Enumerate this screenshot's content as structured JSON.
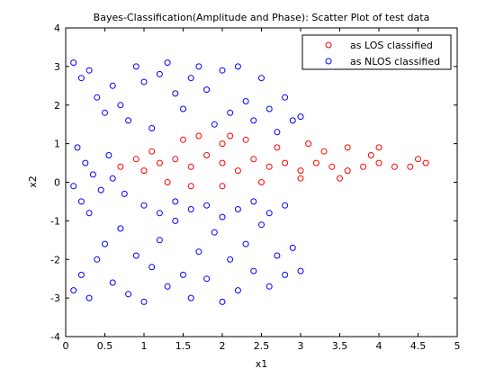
{
  "chart_data": {
    "type": "scatter",
    "title": "Bayes-Classification(Amplitude and Phase): Scatter Plot of test data",
    "xlabel": "x1",
    "ylabel": "x2",
    "xlim": [
      0,
      5
    ],
    "ylim": [
      -4,
      4
    ],
    "xticks": [
      "0",
      "0.5",
      "1",
      "1.5",
      "2",
      "2.5",
      "3",
      "3.5",
      "4",
      "4.5",
      "5"
    ],
    "yticks": [
      "-4",
      "-3",
      "-2",
      "-1",
      "0",
      "1",
      "2",
      "3",
      "4"
    ],
    "grid": false,
    "legend_position": "top-right",
    "marker": "open-circle",
    "series": [
      {
        "name": "as LOS classified",
        "color": "#ff0000",
        "points": [
          [
            1.2,
            0.5
          ],
          [
            1.4,
            0.6
          ],
          [
            1.6,
            0.4
          ],
          [
            1.8,
            0.7
          ],
          [
            2.0,
            0.5
          ],
          [
            2.2,
            0.3
          ],
          [
            2.4,
            0.6
          ],
          [
            2.6,
            0.4
          ],
          [
            2.8,
            0.5
          ],
          [
            3.0,
            0.3
          ],
          [
            3.2,
            0.5
          ],
          [
            3.4,
            0.4
          ],
          [
            3.6,
            0.3
          ],
          [
            3.8,
            0.4
          ],
          [
            4.0,
            0.5
          ],
          [
            4.2,
            0.4
          ],
          [
            4.4,
            0.4
          ],
          [
            4.5,
            0.6
          ],
          [
            4.6,
            0.5
          ],
          [
            4.0,
            0.9
          ],
          [
            1.5,
            1.1
          ],
          [
            1.7,
            1.2
          ],
          [
            2.0,
            1.0
          ],
          [
            2.3,
            1.1
          ],
          [
            2.7,
            0.9
          ],
          [
            3.3,
            0.8
          ],
          [
            3.9,
            0.7
          ],
          [
            1.3,
            0.0
          ],
          [
            1.6,
            -0.1
          ],
          [
            2.0,
            -0.1
          ],
          [
            2.5,
            0.0
          ],
          [
            3.0,
            0.1
          ],
          [
            3.5,
            0.1
          ],
          [
            0.7,
            0.4
          ],
          [
            0.9,
            0.6
          ],
          [
            1.0,
            0.3
          ],
          [
            1.1,
            0.8
          ],
          [
            3.6,
            0.9
          ],
          [
            3.1,
            1.0
          ],
          [
            2.1,
            1.2
          ]
        ]
      },
      {
        "name": "as NLOS classified",
        "color": "#0000ff",
        "points": [
          [
            0.1,
            3.1
          ],
          [
            0.2,
            2.7
          ],
          [
            0.3,
            2.9
          ],
          [
            0.4,
            2.2
          ],
          [
            0.5,
            1.8
          ],
          [
            0.6,
            2.5
          ],
          [
            0.7,
            2.0
          ],
          [
            0.8,
            1.6
          ],
          [
            0.9,
            3.0
          ],
          [
            1.0,
            2.6
          ],
          [
            1.1,
            1.4
          ],
          [
            1.2,
            2.8
          ],
          [
            1.3,
            3.1
          ],
          [
            1.4,
            2.3
          ],
          [
            1.5,
            1.9
          ],
          [
            1.6,
            2.7
          ],
          [
            1.7,
            3.0
          ],
          [
            1.8,
            2.4
          ],
          [
            1.9,
            1.5
          ],
          [
            2.0,
            2.9
          ],
          [
            2.1,
            1.8
          ],
          [
            2.2,
            3.0
          ],
          [
            2.3,
            2.1
          ],
          [
            2.4,
            1.6
          ],
          [
            2.5,
            2.7
          ],
          [
            2.6,
            1.9
          ],
          [
            2.7,
            1.3
          ],
          [
            2.8,
            2.2
          ],
          [
            2.9,
            1.6
          ],
          [
            3.0,
            1.7
          ],
          [
            0.15,
            0.9
          ],
          [
            0.25,
            0.5
          ],
          [
            0.35,
            0.2
          ],
          [
            0.45,
            -0.2
          ],
          [
            0.55,
            0.7
          ],
          [
            0.6,
            0.1
          ],
          [
            0.75,
            -0.3
          ],
          [
            0.2,
            -0.5
          ],
          [
            0.1,
            -0.1
          ],
          [
            0.3,
            -0.8
          ],
          [
            0.1,
            -2.8
          ],
          [
            0.2,
            -2.4
          ],
          [
            0.3,
            -3.0
          ],
          [
            0.4,
            -2.0
          ],
          [
            0.5,
            -1.6
          ],
          [
            0.6,
            -2.6
          ],
          [
            0.7,
            -1.2
          ],
          [
            0.8,
            -2.9
          ],
          [
            0.9,
            -1.9
          ],
          [
            1.0,
            -3.1
          ],
          [
            1.1,
            -2.2
          ],
          [
            1.2,
            -1.5
          ],
          [
            1.3,
            -2.7
          ],
          [
            1.4,
            -1.0
          ],
          [
            1.5,
            -2.4
          ],
          [
            1.6,
            -3.0
          ],
          [
            1.7,
            -1.8
          ],
          [
            1.8,
            -2.5
          ],
          [
            1.9,
            -1.3
          ],
          [
            2.0,
            -3.1
          ],
          [
            2.1,
            -2.0
          ],
          [
            2.2,
            -2.8
          ],
          [
            2.3,
            -1.6
          ],
          [
            2.4,
            -2.3
          ],
          [
            2.5,
            -1.1
          ],
          [
            2.6,
            -2.7
          ],
          [
            2.7,
            -1.9
          ],
          [
            2.8,
            -2.4
          ],
          [
            2.9,
            -1.7
          ],
          [
            3.0,
            -2.3
          ],
          [
            1.0,
            -0.6
          ],
          [
            1.2,
            -0.8
          ],
          [
            1.4,
            -0.5
          ],
          [
            1.6,
            -0.7
          ],
          [
            1.8,
            -0.6
          ],
          [
            2.0,
            -0.9
          ],
          [
            2.2,
            -0.7
          ],
          [
            2.4,
            -0.5
          ],
          [
            2.6,
            -0.8
          ],
          [
            2.8,
            -0.6
          ]
        ]
      }
    ]
  }
}
